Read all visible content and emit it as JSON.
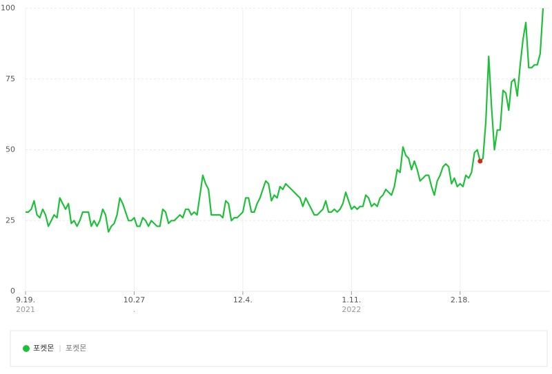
{
  "chart_data": {
    "type": "line",
    "categories": [
      "9.19.",
      null,
      null,
      null,
      null,
      null,
      null,
      null,
      null,
      null,
      null,
      null,
      null,
      null,
      null,
      null,
      null,
      null,
      null,
      null,
      null,
      null,
      null,
      null,
      null,
      null,
      null,
      null,
      null,
      null,
      null,
      null,
      null,
      null,
      null,
      null,
      null,
      null,
      "10.27",
      null,
      null,
      null,
      null,
      null,
      null,
      null,
      null,
      null,
      null,
      null,
      null,
      null,
      null,
      null,
      null,
      null,
      null,
      null,
      null,
      null,
      null,
      null,
      null,
      null,
      null,
      null,
      null,
      null,
      null,
      null,
      null,
      null,
      null,
      null,
      null,
      null,
      "12.4.",
      null,
      null,
      null,
      null,
      null,
      null,
      null,
      null,
      null,
      null,
      null,
      null,
      null,
      null,
      null,
      null,
      null,
      null,
      null,
      null,
      null,
      null,
      null,
      null,
      null,
      null,
      null,
      null,
      null,
      null,
      null,
      null,
      null,
      null,
      null,
      null,
      null,
      "1.11.",
      null,
      null,
      null,
      null,
      null,
      null,
      null,
      null,
      null,
      null,
      null,
      null,
      null,
      null,
      null,
      null,
      null,
      null,
      null,
      null,
      null,
      null,
      null,
      null,
      null,
      null,
      null,
      null,
      null,
      null,
      null,
      null,
      null,
      null,
      null,
      null,
      null,
      "2.18.",
      null,
      null,
      null,
      null,
      null,
      null,
      null,
      null,
      null,
      null,
      null,
      null,
      null,
      null,
      null,
      null,
      null,
      null,
      null,
      null,
      null,
      null,
      null,
      null,
      null,
      null,
      null,
      null,
      null
    ],
    "x_sublabels": [
      {
        "index": 0,
        "label": "2021"
      },
      {
        "index": 38,
        "label": "."
      },
      {
        "index": 114,
        "label": "2022"
      }
    ],
    "series": [
      {
        "name": "포켓몬",
        "color": "#1ec03a",
        "values": [
          28,
          28,
          29,
          32,
          27,
          26,
          29,
          27,
          23,
          25,
          27,
          26,
          33,
          31,
          29,
          31,
          24,
          25,
          23,
          25,
          28,
          28,
          28,
          23,
          25,
          23,
          25,
          29,
          27,
          21,
          23,
          24,
          27,
          33,
          31,
          28,
          25,
          25,
          26,
          23,
          23,
          26,
          25,
          23,
          25,
          24,
          23,
          23,
          29,
          28,
          24,
          25,
          25,
          26,
          27,
          26,
          29,
          29,
          27,
          28,
          27,
          34,
          41,
          38,
          36,
          27,
          27,
          27,
          27,
          26,
          32,
          31,
          25,
          26,
          26,
          27,
          28,
          33,
          33,
          28,
          28,
          31,
          33,
          36,
          39,
          38,
          32,
          34,
          33,
          37,
          36,
          38,
          37,
          36,
          35,
          34,
          33,
          30,
          33,
          31,
          29,
          27,
          27,
          28,
          29,
          32,
          28,
          28,
          29,
          28,
          29,
          31,
          35,
          32,
          29,
          30,
          29,
          30,
          30,
          34,
          33,
          30,
          31,
          30,
          33,
          34,
          36,
          35,
          34,
          37,
          43,
          42,
          51,
          48,
          47,
          43,
          46,
          43,
          39,
          40,
          41,
          41,
          37,
          34,
          39,
          41,
          44,
          45,
          44,
          38,
          40,
          37,
          38,
          37,
          41,
          40,
          42,
          49,
          50,
          46,
          47,
          60,
          83,
          65,
          50,
          57,
          57,
          71,
          70,
          64,
          74,
          75,
          69,
          80,
          89,
          95,
          79,
          79,
          80,
          80,
          84,
          100
        ]
      }
    ],
    "highlight": {
      "index": 159,
      "color": "#d9261c"
    },
    "legend_keywords": [
      "포켓몬"
    ],
    "ylim": [
      0,
      100
    ],
    "yticks": [
      0,
      25,
      50,
      75,
      100
    ],
    "grid": true
  }
}
